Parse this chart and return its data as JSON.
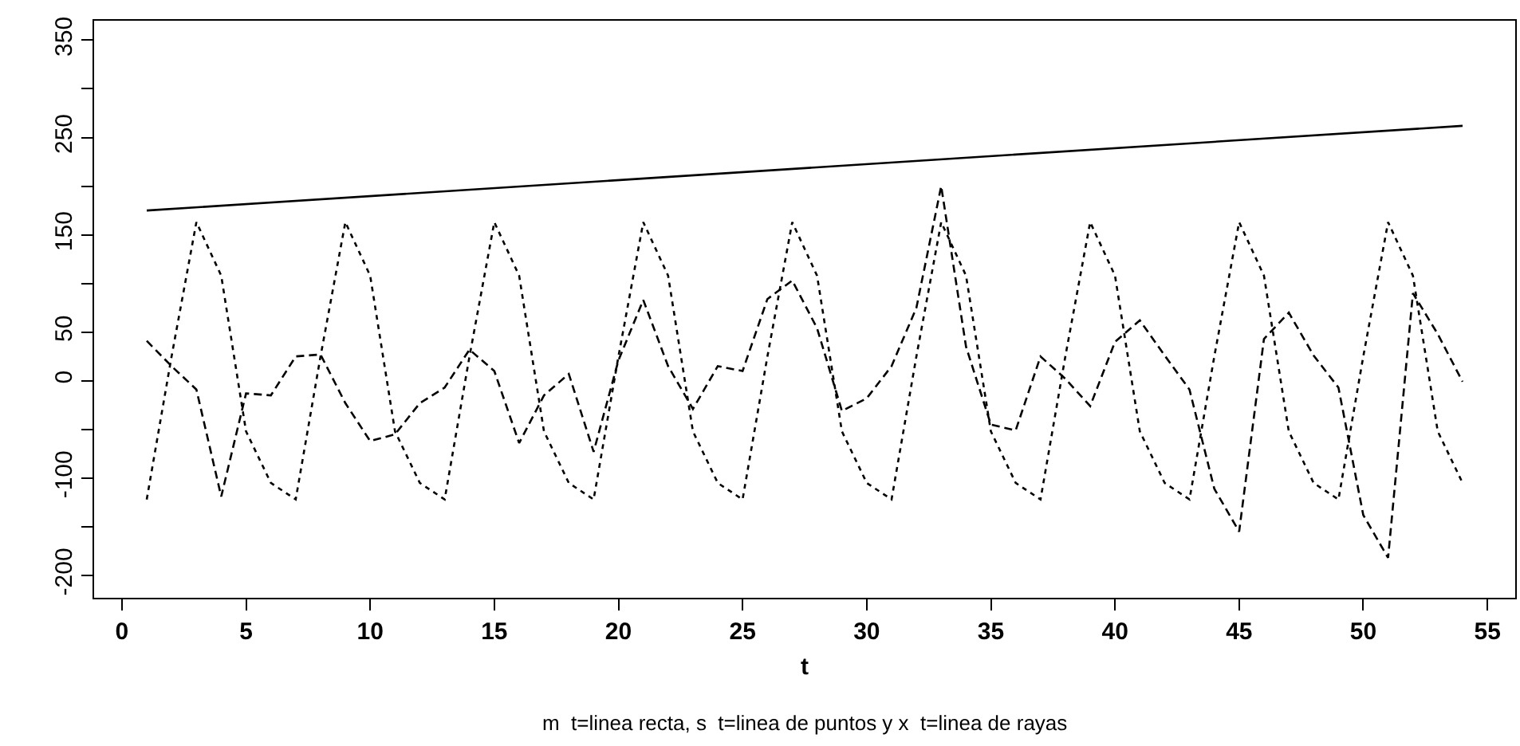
{
  "chart_data": {
    "type": "line",
    "xlabel": "t",
    "annotations": [
      "m  t=linea recta, s  t=linea de puntos y x  t=linea de rayas"
    ],
    "x": [
      1,
      2,
      3,
      4,
      5,
      6,
      7,
      8,
      9,
      10,
      11,
      12,
      13,
      14,
      15,
      16,
      17,
      18,
      19,
      20,
      21,
      22,
      23,
      24,
      25,
      26,
      27,
      28,
      29,
      30,
      31,
      32,
      33,
      34,
      35,
      36,
      37,
      38,
      39,
      40,
      41,
      42,
      43,
      44,
      45,
      46,
      47,
      48,
      49,
      50,
      51,
      52,
      53,
      54
    ],
    "series": [
      {
        "color": "#000000",
        "line_style": "solid",
        "x": [
          1,
          54
        ],
        "values": [
          175,
          262
        ]
      },
      {
        "color": "#000000",
        "line_style": "dotted",
        "values": [
          -122,
          25,
          163,
          108,
          -52,
          -105,
          -122,
          25,
          163,
          108,
          -52,
          -105,
          -122,
          25,
          163,
          108,
          -52,
          -105,
          -122,
          25,
          163,
          108,
          -52,
          -105,
          -122,
          25,
          163,
          108,
          -52,
          -105,
          -122,
          25,
          163,
          108,
          -52,
          -105,
          -122,
          25,
          163,
          108,
          -52,
          -105,
          -122,
          25,
          163,
          108,
          -52,
          -105,
          -122,
          25,
          163,
          108,
          -52,
          -105
        ]
      },
      {
        "color": "#000000",
        "line_style": "dashed",
        "values": [
          41,
          15,
          -9,
          -119,
          -13,
          -15,
          25,
          27,
          -23,
          -62,
          -55,
          -23,
          -7,
          32,
          10,
          -64,
          -15,
          7,
          -73,
          21,
          83,
          15,
          -29,
          15,
          10,
          84,
          103,
          54,
          -31,
          -18,
          15,
          75,
          200,
          35,
          -45,
          -51,
          25,
          2,
          -26,
          40,
          62,
          26,
          -9,
          -111,
          -155,
          43,
          70,
          26,
          -7,
          -138,
          -182,
          90,
          48,
          -1
        ]
      }
    ],
    "xlim": [
      -1.12,
      56.12
    ],
    "xticks": [
      0,
      5,
      10,
      15,
      20,
      25,
      30,
      35,
      40,
      45,
      50,
      55
    ],
    "ylim": [
      -223,
      370
    ],
    "yticks": [
      -200,
      {
        "value": -150,
        "label": null
      },
      -100,
      {
        "value": -50,
        "label": null
      },
      0,
      50,
      {
        "value": 100,
        "label": null
      },
      150,
      {
        "value": 200,
        "label": null
      },
      250,
      {
        "value": 300,
        "label": null
      },
      350
    ]
  }
}
